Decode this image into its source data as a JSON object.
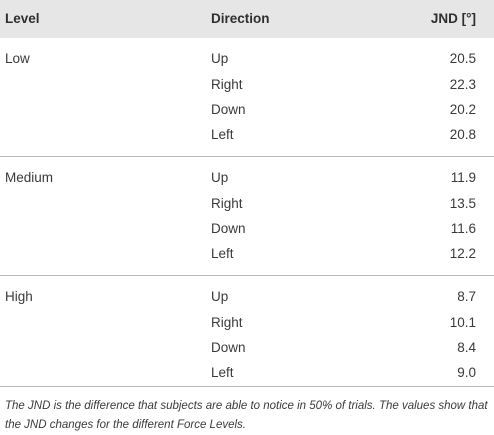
{
  "table": {
    "headers": {
      "level": "Level",
      "direction": "Direction",
      "jnd": "JND [°]"
    },
    "groups": [
      {
        "level": "Low",
        "rows": [
          {
            "direction": "Up",
            "jnd": "20.5"
          },
          {
            "direction": "Right",
            "jnd": "22.3"
          },
          {
            "direction": "Down",
            "jnd": "20.2"
          },
          {
            "direction": "Left",
            "jnd": "20.8"
          }
        ]
      },
      {
        "level": "Medium",
        "rows": [
          {
            "direction": "Up",
            "jnd": "11.9"
          },
          {
            "direction": "Right",
            "jnd": "13.5"
          },
          {
            "direction": "Down",
            "jnd": "11.6"
          },
          {
            "direction": "Left",
            "jnd": "12.2"
          }
        ]
      },
      {
        "level": "High",
        "rows": [
          {
            "direction": "Up",
            "jnd": "8.7"
          },
          {
            "direction": "Right",
            "jnd": "10.1"
          },
          {
            "direction": "Down",
            "jnd": "8.4"
          },
          {
            "direction": "Left",
            "jnd": "9.0"
          }
        ]
      }
    ],
    "footnote": "The JND is the difference that subjects are able to notice in 50% of trials. The values show that the JND changes for the different Force Levels."
  }
}
